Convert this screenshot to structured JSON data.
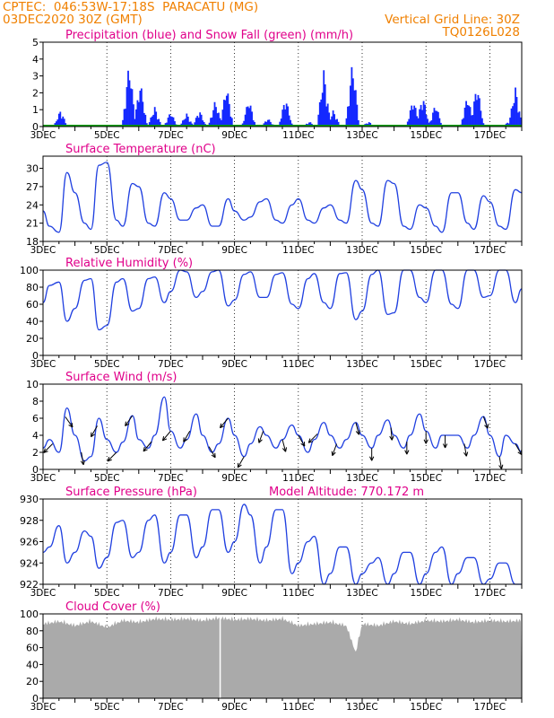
{
  "header": {
    "line1_left": "CPTEC:  046:53W-17:18S  PARACATU (MG)",
    "line2_left": "03DEC2020 30Z (GMT)",
    "line1_right": "Vertical Grid Line: 30Z",
    "line2_right": "TQ0126L028"
  },
  "colors": {
    "header": "#f08000",
    "title": "#e0008a",
    "line": "#2040e0",
    "bar": "#1428ff",
    "snow": "#00a000",
    "cloud": "#aaaaaa",
    "wind_arrow": "#000000"
  },
  "x_axis": {
    "labels": [
      "3DEC",
      "5DEC",
      "7DEC",
      "9DEC",
      "11DEC",
      "13DEC",
      "15DEC",
      "17DEC"
    ],
    "day_start": 3,
    "day_end": 18
  },
  "chart_data": [
    {
      "id": "precip",
      "type": "bar",
      "title": "Precipitation (blue) and Snow Fall (green) (mm/h)",
      "ylim": [
        0,
        5
      ],
      "yticks": [
        0,
        1,
        2,
        3,
        4,
        5
      ],
      "peaks": [
        {
          "day": 3.55,
          "value": 1.0
        },
        {
          "day": 5.7,
          "value": 3.9
        },
        {
          "day": 6.05,
          "value": 2.7
        },
        {
          "day": 6.5,
          "value": 1.2
        },
        {
          "day": 7.0,
          "value": 0.9
        },
        {
          "day": 7.5,
          "value": 0.8
        },
        {
          "day": 7.9,
          "value": 1.0
        },
        {
          "day": 8.4,
          "value": 1.6
        },
        {
          "day": 8.75,
          "value": 2.5
        },
        {
          "day": 9.45,
          "value": 1.7
        },
        {
          "day": 10.05,
          "value": 0.5
        },
        {
          "day": 10.6,
          "value": 1.8
        },
        {
          "day": 11.35,
          "value": 0.3
        },
        {
          "day": 11.8,
          "value": 3.4
        },
        {
          "day": 12.1,
          "value": 1.0
        },
        {
          "day": 12.7,
          "value": 4.0
        },
        {
          "day": 13.2,
          "value": 0.3
        },
        {
          "day": 14.6,
          "value": 1.7
        },
        {
          "day": 14.9,
          "value": 1.9
        },
        {
          "day": 15.3,
          "value": 1.4
        },
        {
          "day": 16.3,
          "value": 1.9
        },
        {
          "day": 16.6,
          "value": 2.6
        },
        {
          "day": 17.6,
          "value": 0.3
        },
        {
          "day": 17.8,
          "value": 2.4
        }
      ]
    },
    {
      "id": "temperature",
      "type": "line",
      "title": "Surface Temperature (nC)",
      "ylim": [
        18,
        32
      ],
      "yticks": [
        18,
        21,
        24,
        27,
        30
      ],
      "series": {
        "x": [
          3.0,
          3.2,
          3.5,
          3.75,
          4.0,
          4.3,
          4.5,
          4.75,
          5.0,
          5.3,
          5.5,
          5.8,
          6.0,
          6.3,
          6.5,
          6.8,
          7.0,
          7.3,
          7.5,
          7.8,
          8.0,
          8.3,
          8.5,
          8.8,
          9.0,
          9.3,
          9.5,
          9.8,
          10.0,
          10.3,
          10.5,
          10.8,
          11.0,
          11.3,
          11.5,
          11.8,
          12.0,
          12.3,
          12.5,
          12.8,
          13.0,
          13.3,
          13.5,
          13.8,
          14.0,
          14.3,
          14.5,
          14.8,
          15.0,
          15.3,
          15.5,
          15.8,
          16.0,
          16.3,
          16.5,
          16.8,
          17.0,
          17.3,
          17.5,
          17.8,
          18.0
        ],
        "y": [
          23.0,
          20.5,
          19.5,
          29.3,
          26.0,
          21.0,
          20.0,
          30.5,
          31.0,
          21.5,
          20.5,
          27.5,
          27.0,
          21.0,
          20.5,
          26.0,
          25.0,
          21.5,
          21.5,
          23.5,
          24.0,
          20.5,
          20.5,
          25.0,
          23.0,
          21.5,
          22.0,
          24.5,
          25.0,
          21.5,
          21.0,
          24.0,
          25.0,
          21.5,
          21.0,
          23.5,
          24.0,
          21.5,
          21.0,
          28.0,
          26.5,
          21.0,
          20.5,
          28.0,
          27.5,
          20.5,
          20.0,
          24.0,
          23.5,
          20.5,
          19.5,
          26.0,
          26.0,
          21.0,
          20.0,
          25.5,
          24.5,
          20.5,
          20.0,
          26.5,
          26.0
        ]
      }
    },
    {
      "id": "humidity",
      "type": "line",
      "title": "Relative Humidity (%)",
      "ylim": [
        0,
        100
      ],
      "yticks": [
        0,
        20,
        40,
        60,
        80,
        100
      ],
      "series": {
        "x": [
          3.0,
          3.2,
          3.5,
          3.75,
          4.0,
          4.3,
          4.5,
          4.75,
          5.0,
          5.3,
          5.5,
          5.8,
          6.0,
          6.3,
          6.5,
          6.8,
          7.0,
          7.3,
          7.5,
          7.8,
          8.0,
          8.3,
          8.5,
          8.8,
          9.0,
          9.3,
          9.5,
          9.8,
          10.0,
          10.3,
          10.5,
          10.8,
          11.0,
          11.3,
          11.5,
          11.8,
          12.0,
          12.3,
          12.5,
          12.8,
          13.0,
          13.3,
          13.5,
          13.8,
          14.0,
          14.3,
          14.5,
          14.8,
          15.0,
          15.3,
          15.5,
          15.8,
          16.0,
          16.3,
          16.5,
          16.8,
          17.0,
          17.3,
          17.5,
          17.8,
          18.0
        ],
        "y": [
          62,
          82,
          86,
          40,
          55,
          88,
          90,
          30,
          35,
          86,
          90,
          52,
          55,
          90,
          92,
          62,
          75,
          100,
          98,
          68,
          75,
          98,
          100,
          58,
          65,
          95,
          98,
          68,
          68,
          95,
          97,
          60,
          55,
          90,
          96,
          62,
          55,
          96,
          97,
          42,
          52,
          95,
          100,
          48,
          50,
          100,
          100,
          68,
          62,
          100,
          100,
          60,
          55,
          100,
          100,
          68,
          70,
          100,
          100,
          62,
          78
        ]
      }
    },
    {
      "id": "wind",
      "type": "line",
      "title": "Surface Wind (m/s)",
      "ylim": [
        0,
        10
      ],
      "yticks": [
        0,
        2,
        4,
        6,
        8,
        10
      ],
      "series": {
        "x": [
          3.0,
          3.2,
          3.5,
          3.75,
          4.0,
          4.3,
          4.5,
          4.75,
          5.0,
          5.3,
          5.5,
          5.8,
          6.0,
          6.3,
          6.5,
          6.8,
          7.0,
          7.3,
          7.5,
          7.8,
          8.0,
          8.3,
          8.5,
          8.8,
          9.0,
          9.3,
          9.5,
          9.8,
          10.0,
          10.3,
          10.5,
          10.8,
          11.0,
          11.3,
          11.5,
          11.8,
          12.0,
          12.3,
          12.5,
          12.8,
          13.0,
          13.3,
          13.5,
          13.8,
          14.0,
          14.3,
          14.5,
          14.8,
          15.0,
          15.3,
          15.5,
          15.8,
          16.0,
          16.3,
          16.5,
          16.8,
          17.0,
          17.3,
          17.5,
          17.8,
          18.0
        ],
        "y": [
          2.5,
          3.5,
          2.0,
          7.2,
          4.0,
          1.0,
          1.5,
          6.0,
          3.5,
          2.0,
          3.2,
          6.3,
          3.5,
          2.5,
          4.0,
          8.5,
          4.5,
          2.5,
          3.5,
          6.5,
          4.0,
          2.0,
          3.0,
          6.0,
          4.0,
          1.5,
          3.0,
          5.0,
          4.0,
          2.5,
          3.5,
          5.2,
          4.0,
          2.0,
          3.5,
          5.5,
          4.0,
          2.5,
          3.5,
          5.5,
          4.0,
          2.5,
          4.0,
          5.8,
          4.0,
          2.5,
          4.0,
          6.5,
          4.5,
          2.5,
          4.0,
          4.0,
          4.0,
          2.5,
          4.0,
          6.2,
          4.0,
          1.5,
          4.0,
          3.0,
          2.0
        ]
      },
      "arrows_deg": [
        {
          "day": 3.3,
          "dir": 225
        },
        {
          "day": 3.7,
          "dir": 145
        },
        {
          "day": 4.2,
          "dir": 170
        },
        {
          "day": 4.7,
          "dir": 210
        },
        {
          "day": 5.3,
          "dir": 225
        },
        {
          "day": 5.8,
          "dir": 215
        },
        {
          "day": 6.4,
          "dir": 220
        },
        {
          "day": 7.0,
          "dir": 220
        },
        {
          "day": 7.6,
          "dir": 210
        },
        {
          "day": 8.2,
          "dir": 150
        },
        {
          "day": 8.8,
          "dir": 220
        },
        {
          "day": 9.3,
          "dir": 210
        },
        {
          "day": 9.9,
          "dir": 200
        },
        {
          "day": 10.5,
          "dir": 165
        },
        {
          "day": 11.0,
          "dir": 150
        },
        {
          "day": 11.6,
          "dir": 225
        },
        {
          "day": 12.2,
          "dir": 200
        },
        {
          "day": 12.8,
          "dir": 165
        },
        {
          "day": 13.3,
          "dir": 180
        },
        {
          "day": 13.9,
          "dir": 175
        },
        {
          "day": 14.4,
          "dir": 180
        },
        {
          "day": 15.0,
          "dir": 180
        },
        {
          "day": 15.6,
          "dir": 180
        },
        {
          "day": 16.2,
          "dir": 170
        },
        {
          "day": 16.8,
          "dir": 160
        },
        {
          "day": 17.3,
          "dir": 170
        },
        {
          "day": 17.8,
          "dir": 150
        }
      ]
    },
    {
      "id": "pressure",
      "type": "line",
      "title": "Surface Pressure (hPa)",
      "annotation": "Model Altitude: 770.172 m",
      "ylim": [
        922,
        930
      ],
      "yticks": [
        922,
        924,
        926,
        928,
        930
      ],
      "series": {
        "x": [
          3.0,
          3.2,
          3.5,
          3.75,
          4.0,
          4.3,
          4.5,
          4.75,
          5.0,
          5.3,
          5.5,
          5.8,
          6.0,
          6.3,
          6.5,
          6.8,
          7.0,
          7.3,
          7.5,
          7.8,
          8.0,
          8.3,
          8.5,
          8.8,
          9.0,
          9.3,
          9.5,
          9.8,
          10.0,
          10.3,
          10.5,
          10.8,
          11.0,
          11.3,
          11.5,
          11.8,
          12.0,
          12.3,
          12.5,
          12.8,
          13.0,
          13.3,
          13.5,
          13.8,
          14.0,
          14.3,
          14.5,
          14.8,
          15.0,
          15.3,
          15.5,
          15.8,
          16.0,
          16.3,
          16.5,
          16.8,
          17.0,
          17.3,
          17.5,
          17.8,
          18.0
        ],
        "y": [
          925.0,
          925.5,
          927.5,
          924.0,
          925.0,
          927.0,
          926.5,
          923.5,
          924.5,
          927.8,
          928.0,
          924.5,
          925.0,
          928.0,
          928.5,
          924.0,
          925.0,
          928.5,
          928.5,
          924.5,
          925.5,
          929.0,
          929.0,
          925.0,
          926.0,
          929.5,
          928.5,
          924.0,
          925.5,
          929.0,
          929.0,
          923.0,
          924.0,
          926.0,
          926.5,
          922.0,
          923.0,
          925.5,
          925.5,
          922.0,
          923.0,
          924.0,
          924.5,
          922.0,
          923.0,
          925.0,
          925.0,
          922.0,
          923.0,
          925.0,
          925.5,
          922.0,
          923.0,
          924.5,
          924.5,
          922.0,
          922.5,
          924.0,
          924.0,
          922.0,
          922.0
        ]
      }
    },
    {
      "id": "cloud",
      "type": "area",
      "title": "Cloud Cover (%)",
      "ylim": [
        0,
        100
      ],
      "yticks": [
        0,
        20,
        40,
        60,
        80,
        100
      ],
      "series": {
        "x": [
          3.0,
          3.5,
          4.0,
          4.5,
          5.0,
          5.5,
          6.0,
          6.5,
          7.0,
          7.5,
          8.0,
          8.5,
          9.0,
          9.5,
          10.0,
          10.5,
          11.0,
          11.5,
          12.0,
          12.5,
          12.8,
          13.0,
          13.5,
          14.0,
          14.5,
          15.0,
          15.5,
          16.0,
          16.5,
          17.0,
          17.5,
          18.0
        ],
        "y": [
          92,
          95,
          90,
          95,
          88,
          96,
          94,
          98,
          97,
          98,
          96,
          99,
          97,
          98,
          96,
          98,
          90,
          92,
          94,
          90,
          58,
          92,
          90,
          95,
          92,
          96,
          95,
          97,
          94,
          96,
          95,
          96
        ]
      }
    }
  ]
}
